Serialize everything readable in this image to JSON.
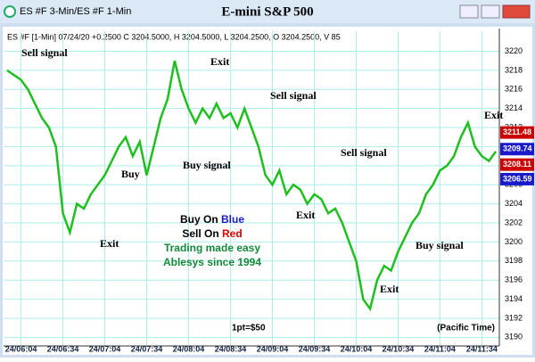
{
  "window_title": "ES #F 3-Min/ES #F 1-Min",
  "chart_data": {
    "type": "line",
    "title": "E-mini S&P 500",
    "subtitle": "ES #F [1-Min] 07/24/20 +0.2500 C 3204.5000, H 3204.5000, L 3204.2500, O 3204.2500, V 85",
    "categories": [
      null,
      null,
      "24/06:04",
      null,
      null,
      null,
      null,
      null,
      "24/06:34",
      null,
      null,
      null,
      null,
      null,
      "24/07:04",
      null,
      null,
      null,
      null,
      null,
      "24/07:34",
      null,
      null,
      null,
      null,
      null,
      "24/08:04",
      null,
      null,
      null,
      null,
      null,
      "24/08:34",
      null,
      null,
      null,
      null,
      null,
      "24/09:04",
      null,
      null,
      null,
      null,
      null,
      "24/09:34",
      null,
      null,
      null,
      null,
      null,
      "24/10:04",
      null,
      null,
      null,
      null,
      null,
      "24/10:34",
      null,
      null,
      null,
      null,
      null,
      "24/11:04",
      null,
      null,
      null,
      null,
      null,
      "24/11:34",
      null,
      null
    ],
    "series": [
      {
        "color": "#1fbf1f",
        "values": [
          3218,
          3217.5,
          3217,
          3216,
          3214.5,
          3213,
          3212,
          3210,
          3203,
          3201,
          3204,
          3203.5,
          3205,
          3206,
          3207,
          3208.5,
          3210,
          3211,
          3209,
          3210.5,
          3207,
          3210,
          3213,
          3215,
          3219,
          3216,
          3214,
          3212.5,
          3214,
          3213,
          3214.5,
          3213,
          3213.5,
          3212,
          3214,
          3212,
          3210,
          3207,
          3206,
          3207.5,
          3205,
          3206,
          3205.5,
          3204,
          3205,
          3204.5,
          3203,
          3203.5,
          3202,
          3200,
          3198,
          3194,
          3193,
          3196,
          3197.5,
          3197,
          3199,
          3200.5,
          3202,
          3203,
          3205,
          3206,
          3207.5,
          3208,
          3209,
          3211,
          3212.5,
          3210,
          3209,
          3208.5,
          3209.5
        ]
      }
    ],
    "ylim": [
      3189.1,
      3220.7
    ],
    "yticks": [
      3190,
      3192,
      3194,
      3196,
      3198,
      3200,
      3202,
      3204,
      3206,
      3208,
      3210,
      3212,
      3214,
      3216,
      3218,
      3220
    ],
    "grid": true,
    "price_labels": [
      {
        "value": 3211.48,
        "color": "#cc0000"
      },
      {
        "value": 3209.74,
        "color": "#1a1acc"
      },
      {
        "value": 3208.11,
        "color": "#cc0000"
      },
      {
        "value": 3206.59,
        "color": "#1a1acc"
      }
    ],
    "annotations": [
      "Sell signal",
      "Buy",
      "Buy signal",
      "Exit",
      "Exit",
      "Sell signal",
      "Sell signal",
      "Exit",
      "Buy signal",
      "Exit",
      "Exit"
    ],
    "notes": [
      {
        "text": "Buy On",
        "word": "Blue",
        "color": "#1a1acc"
      },
      {
        "text": "Sell On",
        "word": "Red",
        "color": "#dd0000"
      }
    ],
    "tagline": [
      "Trading made easy",
      "Ablesys since 1994"
    ],
    "footer_left": "1pt=$50",
    "footer_right": "(Pacific Time)"
  }
}
